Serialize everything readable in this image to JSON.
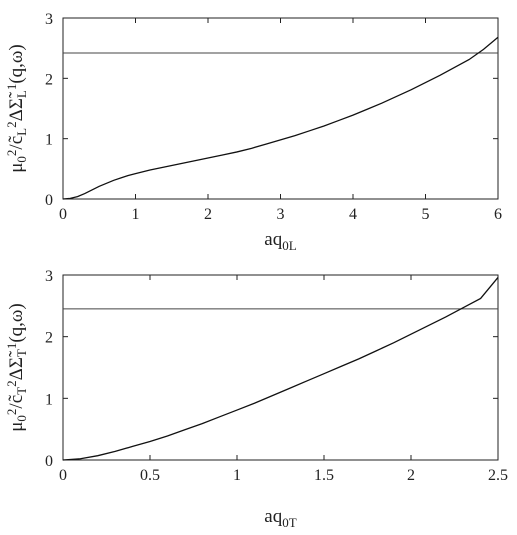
{
  "chart_data": [
    {
      "type": "line",
      "xlabel": {
        "main": "aq",
        "sub": "0L"
      },
      "ylabel": {
        "pre": "μ",
        "s1": "0",
        "p1": "2",
        "m1": "/c̃",
        "s2": "L",
        "p2": "2",
        "m2": "ΔΣ̃",
        "s3": "L",
        "p3": "1",
        "m3": "(q,ω)"
      },
      "xlim": [
        0,
        6
      ],
      "ylim": [
        0,
        3
      ],
      "xticks": [
        "0",
        "1",
        "2",
        "3",
        "4",
        "5",
        "6"
      ],
      "yticks": [
        "0",
        "1",
        "2",
        "3"
      ],
      "hline": 2.42,
      "series": [
        {
          "x": [
            0,
            0.1,
            0.2,
            0.3,
            0.4,
            0.5,
            0.6,
            0.7,
            0.8,
            0.9,
            1.0,
            1.2,
            1.4,
            1.6,
            1.8,
            2.0,
            2.2,
            2.4,
            2.6,
            2.8,
            3.0,
            3.2,
            3.4,
            3.6,
            3.8,
            4.0,
            4.2,
            4.4,
            4.6,
            4.8,
            5.0,
            5.2,
            5.4,
            5.6,
            5.8,
            6.0
          ],
          "y": [
            0,
            0.01,
            0.04,
            0.09,
            0.15,
            0.21,
            0.26,
            0.31,
            0.35,
            0.39,
            0.42,
            0.48,
            0.53,
            0.58,
            0.63,
            0.68,
            0.73,
            0.78,
            0.84,
            0.91,
            0.98,
            1.05,
            1.13,
            1.21,
            1.3,
            1.39,
            1.49,
            1.59,
            1.7,
            1.81,
            1.93,
            2.05,
            2.18,
            2.31,
            2.48,
            2.68
          ]
        }
      ]
    },
    {
      "type": "line",
      "xlabel": {
        "main": "aq",
        "sub": "0T"
      },
      "ylabel": {
        "pre": "μ",
        "s1": "0",
        "p1": "2",
        "m1": "/c̃",
        "s2": "T",
        "p2": "2",
        "m2": "ΔΣ̃",
        "s3": "T",
        "p3": "1",
        "m3": "(q,ω)"
      },
      "xlim": [
        0,
        2.5
      ],
      "ylim": [
        0,
        3
      ],
      "xticks": [
        "0",
        "0.5",
        "1",
        "1.5",
        "2",
        "2.5"
      ],
      "yticks": [
        "0",
        "1",
        "2",
        "3"
      ],
      "hline": 2.45,
      "series": [
        {
          "x": [
            0,
            0.1,
            0.2,
            0.3,
            0.4,
            0.5,
            0.6,
            0.7,
            0.8,
            0.9,
            1.0,
            1.1,
            1.2,
            1.3,
            1.4,
            1.5,
            1.6,
            1.7,
            1.8,
            1.9,
            2.0,
            2.1,
            2.2,
            2.3,
            2.4,
            2.5
          ],
          "y": [
            0,
            0.02,
            0.07,
            0.14,
            0.22,
            0.3,
            0.39,
            0.49,
            0.59,
            0.7,
            0.81,
            0.92,
            1.04,
            1.16,
            1.28,
            1.4,
            1.52,
            1.64,
            1.77,
            1.9,
            2.04,
            2.18,
            2.32,
            2.47,
            2.62,
            2.96
          ]
        }
      ]
    }
  ]
}
